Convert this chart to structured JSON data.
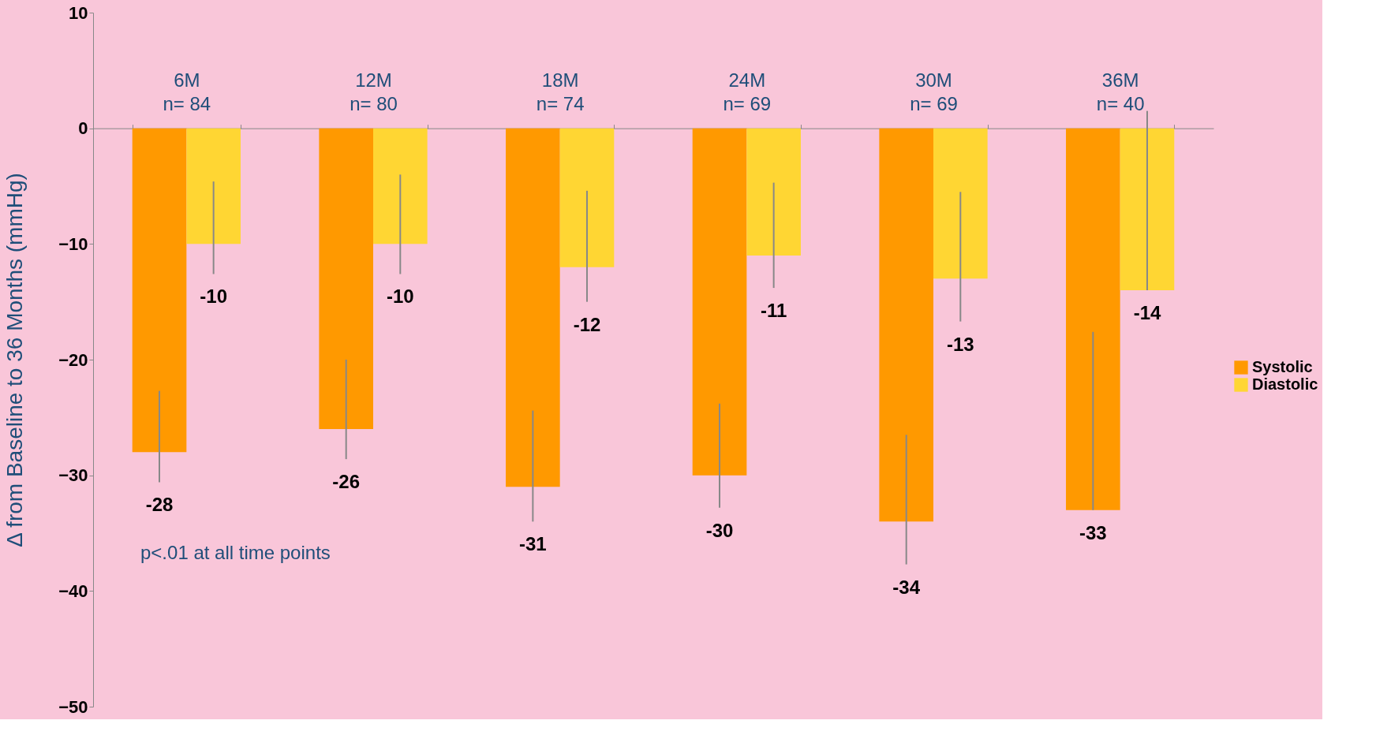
{
  "chart_data": {
    "type": "bar",
    "ylabel": "Δ from Baseline to 36 Months (mmHg)",
    "categories": [
      "6M\nn= 84",
      "12M\nn= 80",
      "18M\nn= 74",
      "24M\nn= 69",
      "30M\nn= 69",
      "36M\nn= 40"
    ],
    "series": [
      {
        "name": "Systolic",
        "color": "#ff9900",
        "values": [
          -28,
          -26,
          -31,
          -30,
          -34,
          -33
        ],
        "errors": [
          [
            -30.6,
            -22.7
          ],
          [
            -28.6,
            -20
          ],
          [
            -34,
            -24.4
          ],
          [
            -32.8,
            -23.8
          ],
          [
            -37.7,
            -26.5
          ],
          [
            -33,
            -17.6
          ]
        ]
      },
      {
        "name": "Diastolic",
        "color": "#ffd633",
        "values": [
          -10,
          -10,
          -12,
          -11,
          -13,
          -14
        ],
        "errors": [
          [
            -12.6,
            -4.6
          ],
          [
            -12.6,
            -4
          ],
          [
            -15,
            -5.4
          ],
          [
            -13.8,
            -4.7
          ],
          [
            -16.7,
            -5.5
          ],
          [
            -14,
            1.5
          ]
        ]
      }
    ],
    "ylim": [
      -50,
      10
    ],
    "yticks": [
      -50,
      -40,
      -30,
      -20,
      -10,
      0,
      10
    ],
    "data_labels": true,
    "grid": false,
    "legend": "right",
    "annotations": [
      "p<.01 at all time points"
    ]
  }
}
